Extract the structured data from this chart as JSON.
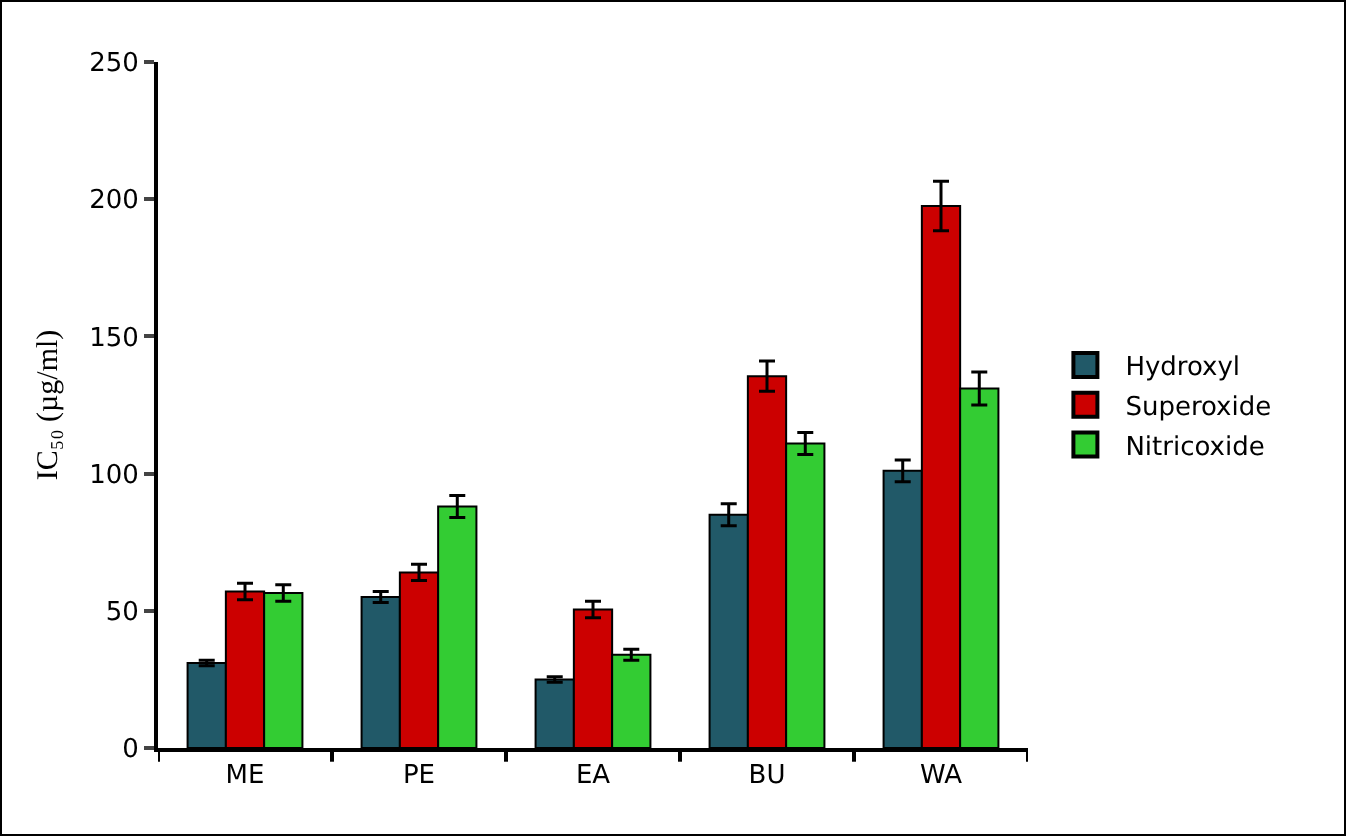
{
  "chart_data": {
    "type": "bar",
    "ylabel": "IC₅₀ (µg/ml)",
    "categories": [
      "ME",
      "PE",
      "EA",
      "BU",
      "WA"
    ],
    "series": [
      {
        "name": "Hydroxyl",
        "color": "#215968",
        "values": [
          31,
          55,
          25,
          85,
          101
        ],
        "errors": [
          1,
          2,
          1,
          4,
          4
        ]
      },
      {
        "name": "Superoxide",
        "color": "#cc0000",
        "values": [
          57,
          64,
          50.5,
          135.5,
          197.5
        ],
        "errors": [
          3,
          3,
          3,
          5.5,
          9
        ]
      },
      {
        "name": "Nitricoxide",
        "color": "#33cc33",
        "values": [
          56.5,
          88,
          34,
          111,
          131
        ],
        "errors": [
          3,
          4,
          2,
          4,
          6
        ]
      }
    ],
    "ylim": [
      0,
      250
    ],
    "yticks": [
      0,
      50,
      100,
      150,
      200,
      250
    ],
    "grid": false,
    "legend": "right"
  }
}
